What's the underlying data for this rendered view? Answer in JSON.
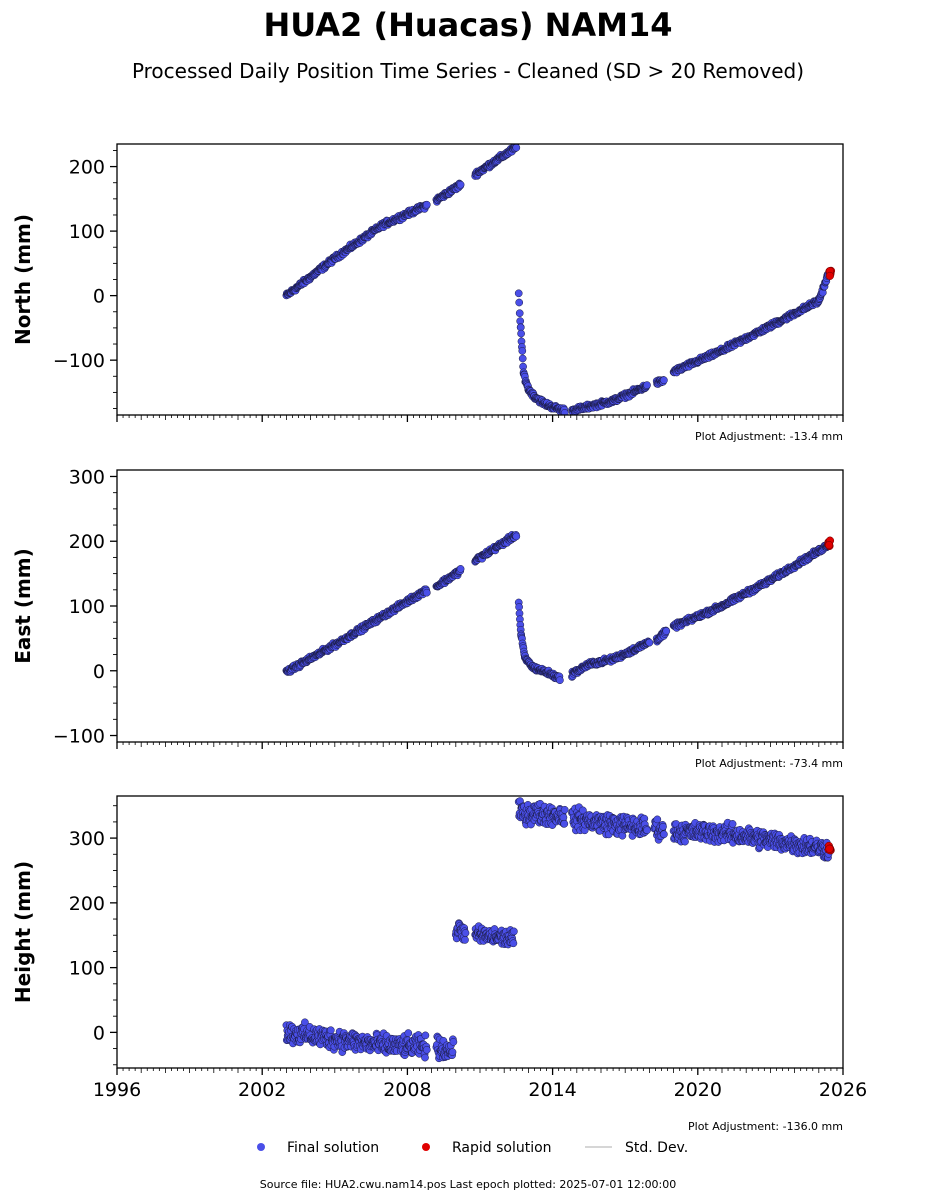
{
  "title": "HUA2 (Huacas) NAM14",
  "subtitle": "Processed Daily Position Time Series - Cleaned (SD > 20 Removed)",
  "footer": "Source file: HUA2.cwu.nam14.pos  Last epoch plotted: 2025-07-01 12:00:00",
  "colors": {
    "final": "#4a4fe8",
    "rapid": "#e00000",
    "stddev": "#c8c8c8",
    "edge": "#1a1a40"
  },
  "legend": {
    "final": "Final solution",
    "rapid": "Rapid solution",
    "stddev": "Std. Dev.",
    "placement": "bottom-center"
  },
  "chart_data": [
    {
      "type": "scatter",
      "ylabel": "North (mm)",
      "adjustment": "Plot Adjustment: -13.4 mm",
      "xlim": [
        1996,
        2026
      ],
      "ylim": [
        -185,
        235
      ],
      "yticks": [
        -100,
        0,
        100,
        200
      ],
      "yticklabels": [
        "−100",
        "0",
        "100",
        "200"
      ],
      "xticks": [
        1996,
        2002,
        2008,
        2014,
        2020,
        2026
      ],
      "xticklabels": [],
      "segments": [
        {
          "x": [
            2003.0,
            2005.0,
            2007.0,
            2008.8
          ],
          "y": [
            0,
            58,
            110,
            140
          ]
        },
        {
          "x": [
            2009.2,
            2010.2
          ],
          "y": [
            148,
            172
          ]
        },
        {
          "x": [
            2010.8,
            2012.5
          ],
          "y": [
            188,
            230
          ]
        },
        {
          "x": [
            2012.6,
            2012.68,
            2012.8,
            2013.0,
            2013.3,
            2013.7,
            2014.2,
            2014.5
          ],
          "y": [
            2,
            -50,
            -120,
            -145,
            -158,
            -168,
            -175,
            -178
          ]
        },
        {
          "x": [
            2014.8,
            2015.5,
            2016.5,
            2017.3,
            2017.9
          ],
          "y": [
            -178,
            -172,
            -163,
            -150,
            -140
          ]
        },
        {
          "x": [
            2018.3,
            2018.6
          ],
          "y": [
            -135,
            -132
          ]
        },
        {
          "x": [
            2019.0,
            2021.0,
            2023.0,
            2025.0,
            2025.4
          ],
          "y": [
            -118,
            -85,
            -47,
            -8,
            34
          ]
        }
      ],
      "rapid": {
        "x": [
          2025.45
        ],
        "y": [
          35
        ]
      }
    },
    {
      "type": "scatter",
      "ylabel": "East (mm)",
      "adjustment": "Plot Adjustment: -73.4 mm",
      "xlim": [
        1996,
        2026
      ],
      "ylim": [
        -110,
        310
      ],
      "yticks": [
        -100,
        0,
        100,
        200,
        300
      ],
      "yticklabels": [
        "−100",
        "0",
        "100",
        "200",
        "300"
      ],
      "xticks": [
        1996,
        2002,
        2008,
        2014,
        2020,
        2026
      ],
      "xticklabels": [],
      "segments": [
        {
          "x": [
            2003.0,
            2005.0,
            2007.0,
            2008.8
          ],
          "y": [
            -2,
            40,
            85,
            125
          ]
        },
        {
          "x": [
            2009.2,
            2010.2
          ],
          "y": [
            130,
            155
          ]
        },
        {
          "x": [
            2010.8,
            2012.5
          ],
          "y": [
            170,
            210
          ]
        },
        {
          "x": [
            2012.6,
            2012.7,
            2012.85,
            2013.2,
            2013.8,
            2014.3
          ],
          "y": [
            105,
            55,
            20,
            5,
            -3,
            -12
          ]
        },
        {
          "x": [
            2014.8,
            2015.5,
            2016.5,
            2017.5,
            2018.0
          ],
          "y": [
            -5,
            10,
            18,
            35,
            45
          ]
        },
        {
          "x": [
            2018.3,
            2018.7
          ],
          "y": [
            48,
            60
          ]
        },
        {
          "x": [
            2019.0,
            2021.0,
            2023.0,
            2025.0,
            2025.4
          ],
          "y": [
            68,
            100,
            140,
            185,
            195
          ]
        }
      ],
      "rapid": {
        "x": [
          2025.45
        ],
        "y": [
          197
        ]
      }
    },
    {
      "type": "scatter",
      "ylabel": "Height (mm)",
      "adjustment": "Plot Adjustment: -136.0 mm",
      "xlim": [
        1996,
        2026
      ],
      "ylim": [
        -55,
        365
      ],
      "yticks": [
        0,
        100,
        200,
        300
      ],
      "yticklabels": [
        "0",
        "100",
        "200",
        "300"
      ],
      "xticks": [
        1996,
        2002,
        2008,
        2014,
        2020,
        2026
      ],
      "xticklabels": [
        "1996",
        "2002",
        "2008",
        "2014",
        "2020",
        "2026"
      ],
      "segments": [
        {
          "x": [
            2003.0,
            2005.0,
            2007.0,
            2008.8
          ],
          "y": [
            0,
            -10,
            -20,
            -22
          ],
          "jitter": 11
        },
        {
          "x": [
            2009.2,
            2009.9
          ],
          "y": [
            -22,
            -30
          ],
          "jitter": 11
        },
        {
          "x": [
            2010.0,
            2010.4
          ],
          "y": [
            160,
            155
          ],
          "jitter": 10
        },
        {
          "x": [
            2010.8,
            2012.4
          ],
          "y": [
            150,
            145
          ],
          "jitter": 9
        },
        {
          "x": [
            2012.6,
            2014.5
          ],
          "y": [
            340,
            335
          ],
          "jitter": 11
        },
        {
          "x": [
            2014.8,
            2017.9
          ],
          "y": [
            330,
            315
          ],
          "jitter": 11
        },
        {
          "x": [
            2018.2,
            2018.6
          ],
          "y": [
            318,
            310
          ],
          "jitter": 10
        },
        {
          "x": [
            2019.0,
            2021.0,
            2023.0,
            2025.4
          ],
          "y": [
            310,
            308,
            297,
            283
          ],
          "jitter": 10
        }
      ],
      "rapid": {
        "x": [
          2025.45
        ],
        "y": [
          285
        ]
      }
    }
  ]
}
